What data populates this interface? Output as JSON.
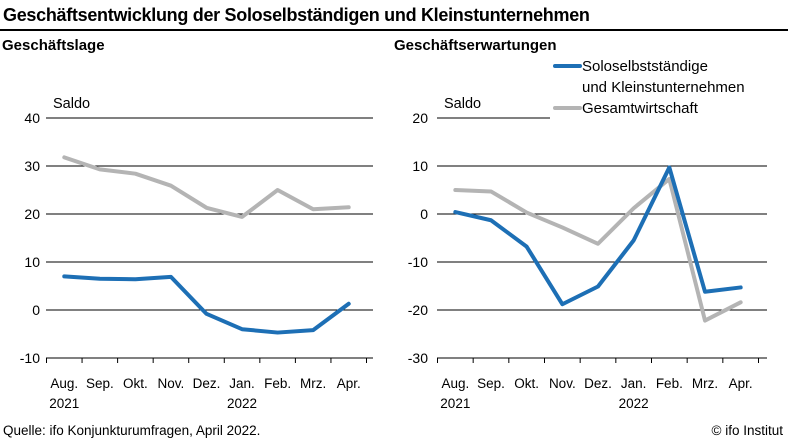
{
  "header": {
    "title": "Geschäftsentwicklung der Soloselbständigen und Kleinstunternehmen"
  },
  "legend": {
    "items": [
      {
        "label": "Soloselbstständige\nund Kleinstunternehmen",
        "color": "#1d6fb5"
      },
      {
        "label": "Gesamtwirtschaft",
        "color": "#b4b4b4"
      }
    ]
  },
  "colors": {
    "series_blue": "#1d6fb5",
    "series_gray": "#b4b4b4",
    "axis": "#000000"
  },
  "footer": {
    "source": "Quelle: ifo Konjunkturumfragen, April 2022.",
    "copyright": "© ifo Institut"
  },
  "chart_data": [
    {
      "type": "line",
      "title": "Geschäftslage",
      "ylabel": "Saldo",
      "categories": [
        "Aug.",
        "Sep.",
        "Okt.",
        "Nov.",
        "Dez.",
        "Jan.",
        "Feb.",
        "Mrz.",
        "Apr."
      ],
      "year_labels": [
        {
          "index": 0,
          "label": "2021"
        },
        {
          "index": 5,
          "label": "2022"
        }
      ],
      "yticks": [
        40,
        30,
        20,
        10,
        0,
        -10
      ],
      "ylim": [
        -10,
        40
      ],
      "grid": true,
      "series": [
        {
          "name": "Soloselbstständige und Kleinstunternehmen",
          "color": "#1d6fb5",
          "values": [
            7.0,
            6.5,
            6.4,
            6.9,
            -0.8,
            -4.0,
            -4.7,
            -4.2,
            1.3
          ]
        },
        {
          "name": "Gesamtwirtschaft",
          "color": "#b4b4b4",
          "values": [
            31.8,
            29.3,
            28.4,
            25.9,
            21.3,
            19.4,
            25.0,
            21.0,
            21.4
          ]
        }
      ]
    },
    {
      "type": "line",
      "title": "Geschäftserwartungen",
      "ylabel": "Saldo",
      "categories": [
        "Aug.",
        "Sep.",
        "Okt.",
        "Nov.",
        "Dez.",
        "Jan.",
        "Feb.",
        "Mrz.",
        "Apr."
      ],
      "year_labels": [
        {
          "index": 0,
          "label": "2021"
        },
        {
          "index": 5,
          "label": "2022"
        }
      ],
      "yticks": [
        20,
        10,
        0,
        -10,
        -20,
        -30
      ],
      "ylim": [
        -30,
        20
      ],
      "grid": true,
      "series": [
        {
          "name": "Soloselbstständige und Kleinstunternehmen",
          "color": "#1d6fb5",
          "values": [
            0.4,
            -1.3,
            -6.8,
            -18.8,
            -15.1,
            -5.5,
            9.7,
            -16.2,
            -15.3
          ]
        },
        {
          "name": "Gesamtwirtschaft",
          "color": "#b4b4b4",
          "values": [
            5.0,
            4.7,
            0.3,
            -2.8,
            -6.2,
            1.2,
            7.3,
            -22.2,
            -18.4
          ]
        }
      ]
    }
  ]
}
